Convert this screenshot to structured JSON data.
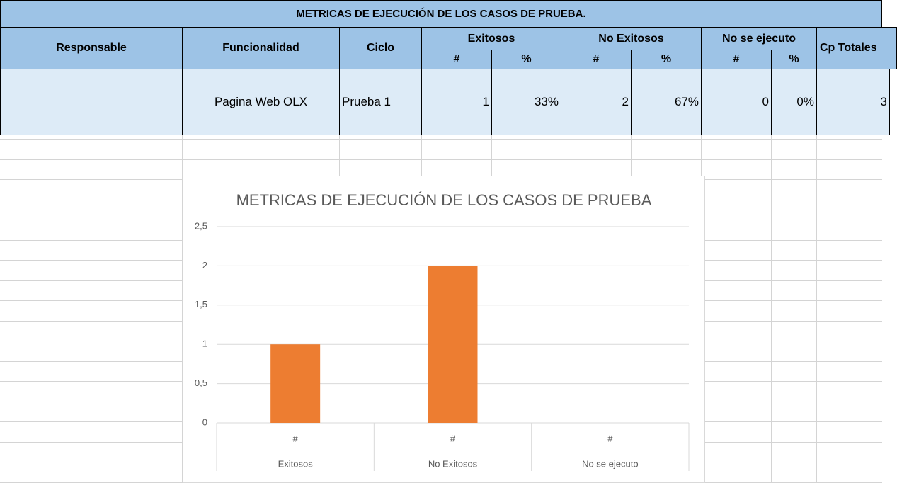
{
  "table": {
    "title": "METRICAS DE EJECUCIÓN DE LOS CASOS DE PRUEBA.",
    "headers": [
      "Responsable",
      "Funcionalidad",
      "Ciclo",
      "Exitosos",
      "No Exitosos",
      "No se ejecuto",
      "Cp Totales"
    ],
    "subheaders": [
      "#",
      "%",
      "#",
      "%",
      "#",
      "%"
    ],
    "rows": [
      [
        "Pagina Web OLX",
        "Prueba 1",
        "1",
        "33%",
        "2",
        "67%",
        "0",
        "0%",
        "3"
      ]
    ]
  },
  "chart_data": {
    "type": "bar",
    "title": "METRICAS DE EJECUCIÓN DE LOS CASOS DE PRUEBA",
    "categories": [
      "#",
      "#",
      "#"
    ],
    "groups": [
      "Exitosos",
      "No Exitosos",
      "No se ejecuto"
    ],
    "values": [
      1,
      2,
      0
    ],
    "color": "#ed7d31",
    "ylim": [
      0,
      2.5
    ],
    "yticks": [
      0,
      {
        "value": 0.5,
        "label": "0,5"
      },
      1,
      {
        "value": 1.5,
        "label": "1,5"
      },
      2,
      {
        "value": 2.5,
        "label": "2,5"
      }
    ],
    "grid": true
  }
}
